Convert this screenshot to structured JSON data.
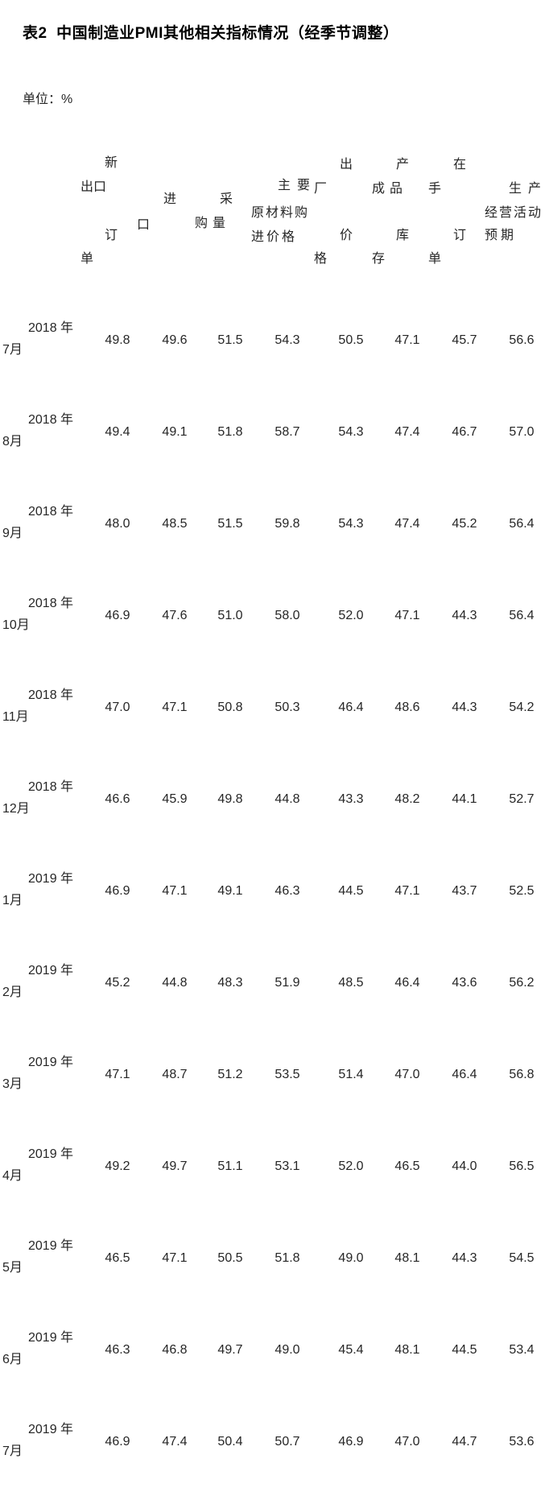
{
  "page": {
    "background": "#ffffff",
    "text_color": "#262626"
  },
  "table": {
    "title": "表2  中国制造业PMI其他相关指标情况（经季节调整）",
    "unit_label": "单位：%",
    "columns": [
      {
        "id": "new-export-orders",
        "name": "新出口订单",
        "display_lines": [
          "新",
          "出口",
          "订",
          "单"
        ]
      },
      {
        "id": "imports",
        "name": "进口",
        "display_lines": [
          "进",
          "口"
        ]
      },
      {
        "id": "purchasing-volume",
        "name": "采购量",
        "display_lines": [
          "采",
          "购量"
        ]
      },
      {
        "id": "raw-material-purchase-price",
        "name": "主要原材料购进价格",
        "display_lines": [
          "主要",
          "原材料购",
          "进价格"
        ]
      },
      {
        "id": "ex-factory-price",
        "name": "出厂价格",
        "display_lines": [
          "出",
          "厂",
          "价",
          "格"
        ]
      },
      {
        "id": "finished-goods-inventory",
        "name": "产成品库存",
        "display_lines": [
          "产",
          "成品",
          "库",
          "存"
        ]
      },
      {
        "id": "backlog-of-orders",
        "name": "在手订单",
        "display_lines": [
          "在",
          "手",
          "订",
          "单"
        ]
      },
      {
        "id": "business-activity-expectation",
        "name": "生产经营活动预期",
        "display_lines": [
          "生产",
          "经营活动",
          "预期"
        ]
      }
    ],
    "rows": [
      {
        "period": "2018年7月",
        "period_lines": [
          "2018 年",
          "7月"
        ],
        "values": [
          "49.8",
          "49.6",
          "51.5",
          "54.3",
          "50.5",
          "47.1",
          "45.7",
          "56.6"
        ]
      },
      {
        "period": "2018年8月",
        "period_lines": [
          "2018 年",
          "8月"
        ],
        "values": [
          "49.4",
          "49.1",
          "51.8",
          "58.7",
          "54.3",
          "47.4",
          "46.7",
          "57.0"
        ]
      },
      {
        "period": "2018年9月",
        "period_lines": [
          "2018 年",
          "9月"
        ],
        "values": [
          "48.0",
          "48.5",
          "51.5",
          "59.8",
          "54.3",
          "47.4",
          "45.2",
          "56.4"
        ]
      },
      {
        "period": "2018年10月",
        "period_lines": [
          "2018 年",
          "10月"
        ],
        "values": [
          "46.9",
          "47.6",
          "51.0",
          "58.0",
          "52.0",
          "47.1",
          "44.3",
          "56.4"
        ]
      },
      {
        "period": "2018年11月",
        "period_lines": [
          "2018 年",
          "11月"
        ],
        "values": [
          "47.0",
          "47.1",
          "50.8",
          "50.3",
          "46.4",
          "48.6",
          "44.3",
          "54.2"
        ]
      },
      {
        "period": "2018年12月",
        "period_lines": [
          "2018 年",
          "12月"
        ],
        "values": [
          "46.6",
          "45.9",
          "49.8",
          "44.8",
          "43.3",
          "48.2",
          "44.1",
          "52.7"
        ]
      },
      {
        "period": "2019年1月",
        "period_lines": [
          "2019 年",
          "1月"
        ],
        "values": [
          "46.9",
          "47.1",
          "49.1",
          "46.3",
          "44.5",
          "47.1",
          "43.7",
          "52.5"
        ]
      },
      {
        "period": "2019年2月",
        "period_lines": [
          "2019 年",
          "2月"
        ],
        "values": [
          "45.2",
          "44.8",
          "48.3",
          "51.9",
          "48.5",
          "46.4",
          "43.6",
          "56.2"
        ]
      },
      {
        "period": "2019年3月",
        "period_lines": [
          "2019 年",
          "3月"
        ],
        "values": [
          "47.1",
          "48.7",
          "51.2",
          "53.5",
          "51.4",
          "47.0",
          "46.4",
          "56.8"
        ]
      },
      {
        "period": "2019年4月",
        "period_lines": [
          "2019 年",
          "4月"
        ],
        "values": [
          "49.2",
          "49.7",
          "51.1",
          "53.1",
          "52.0",
          "46.5",
          "44.0",
          "56.5"
        ]
      },
      {
        "period": "2019年5月",
        "period_lines": [
          "2019 年",
          "5月"
        ],
        "values": [
          "46.5",
          "47.1",
          "50.5",
          "51.8",
          "49.0",
          "48.1",
          "44.3",
          "54.5"
        ]
      },
      {
        "period": "2019年6月",
        "period_lines": [
          "2019 年",
          "6月"
        ],
        "values": [
          "46.3",
          "46.8",
          "49.7",
          "49.0",
          "45.4",
          "48.1",
          "44.5",
          "53.4"
        ]
      },
      {
        "period": "2019年7月",
        "period_lines": [
          "2019 年",
          "7月"
        ],
        "values": [
          "46.9",
          "47.4",
          "50.4",
          "50.7",
          "46.9",
          "47.0",
          "44.7",
          "53.6"
        ]
      }
    ]
  }
}
